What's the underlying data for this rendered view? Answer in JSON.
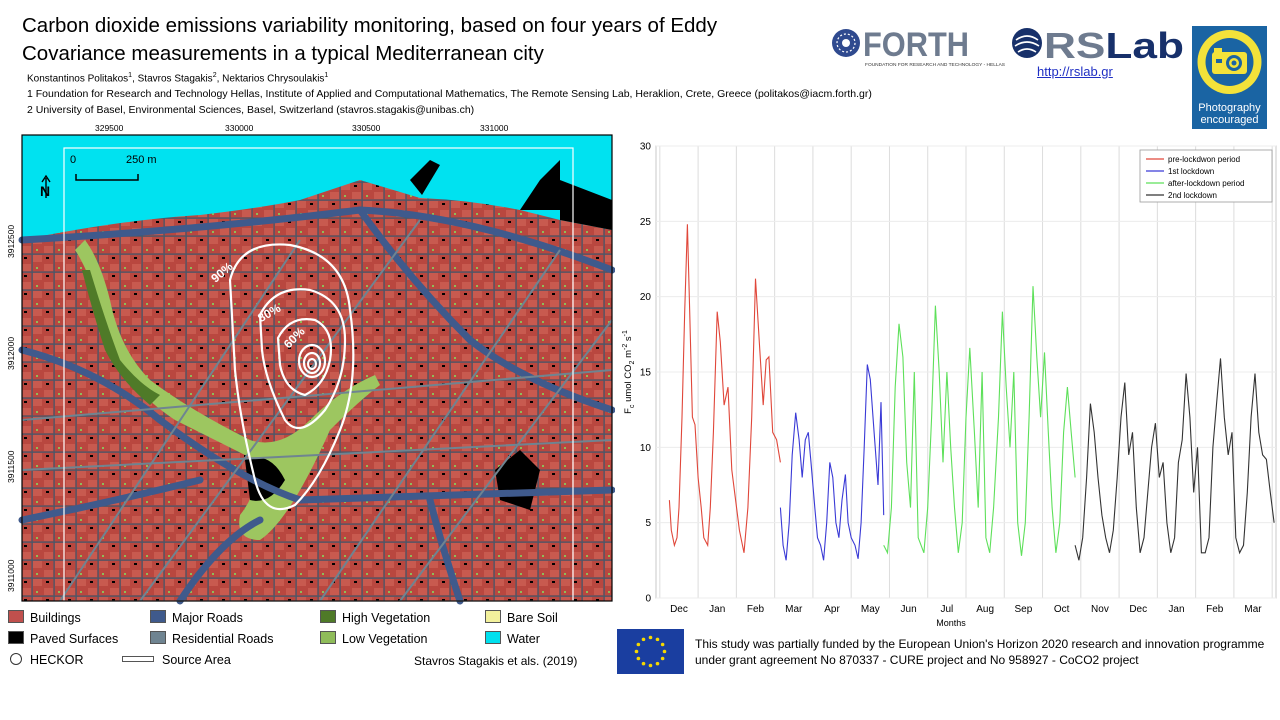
{
  "title": "Carbon dioxide emissions variability monitoring, based on four years of Eddy Covariance measurements in a typical Mediterranean city",
  "authors": [
    {
      "name": "Konstantinos Politakos",
      "aff": "1"
    },
    {
      "name": "Stavros Stagakis",
      "aff": "2"
    },
    {
      "name": "Nektarios Chrysoulakis",
      "aff": "1"
    }
  ],
  "affiliations": [
    "1 Foundation for Research and Technology Hellas, Institute of Applied and Computational Mathematics, The  Remote Sensing Lab, Heraklion, Crete, Greece  (politakos@iacm.forth.gr)",
    "2 University of Basel, Environmental Sciences, Basel, Switzerland (stavros.stagakis@unibas.ch)"
  ],
  "logos": {
    "forth_name": "FORTH",
    "forth_subtitle": "FOUNDATION FOR RESEARCH AND TECHNOLOGY - HELLAS",
    "rslab_name_a": "RS",
    "rslab_name_b": "Lab",
    "rslab_link": "http://rslab.gr",
    "badge_line1": "Photography",
    "badge_line2": "encouraged"
  },
  "map": {
    "x_ticks": [
      "329500",
      "330000",
      "330500",
      "331000"
    ],
    "y_ticks": [
      "3912500",
      "3912000",
      "3911500",
      "3911000"
    ],
    "scale_start": "0",
    "scale_end": "250 m",
    "north_symbol": "N",
    "contour_labels": [
      "90%",
      "80%",
      "60%"
    ]
  },
  "legend": [
    {
      "label": "Buildings",
      "color": "#c0504d"
    },
    {
      "label": "Major Roads",
      "color": "#3f5a8c"
    },
    {
      "label": "High Vegetation",
      "color": "#4f7a28"
    },
    {
      "label": "Bare Soil",
      "color": "#f3f19c"
    },
    {
      "label": "Paved Surfaces",
      "color": "#000000"
    },
    {
      "label": "Residential Roads",
      "color": "#6f8491"
    },
    {
      "label": "Low Vegetation",
      "color": "#8fbc5a"
    },
    {
      "label": "Water",
      "color": "#00e0ee"
    },
    {
      "label": "HECKOR",
      "color": "#ffffff"
    },
    {
      "label": "Source Area",
      "color": "#ffffff"
    }
  ],
  "citation": "Stavros Stagakis et als. (2019)",
  "funding": "This study was partially funded by the European Union's Horizon 2020 research and innovation programme under grant agreement No 870337  - CURE project and No 958927  - CoCO2 project",
  "chart_data": {
    "type": "line",
    "title": "",
    "xlabel": "Months",
    "ylabel": "F_c umol CO2 m^-2 s^-1",
    "ylabel_parts": {
      "main": "F",
      "sub1": "c",
      "mid": " umol CO",
      "sub2": "2",
      "m": " m",
      "sup1": "-2",
      "s": " s",
      "sup2": "-1"
    },
    "ylim": [
      0,
      30
    ],
    "yticks": [
      0,
      5,
      10,
      15,
      20,
      25,
      30
    ],
    "categories": [
      "Dec",
      "Jan",
      "Feb",
      "Mar",
      "Apr",
      "May",
      "Jun",
      "Jul",
      "Aug",
      "Sep",
      "Oct",
      "Nov",
      "Dec",
      "Jan",
      "Feb",
      "Mar"
    ],
    "series": [
      {
        "name": "pre-lockdwon period",
        "color": "#e0473a",
        "x": [
          -0.25,
          -0.2,
          -0.12,
          -0.05,
          0,
          0.08,
          0.15,
          0.22,
          0.28,
          0.35,
          0.42,
          0.5,
          0.58,
          0.65,
          0.75,
          0.82,
          0.9,
          1.0,
          1.08,
          1.18,
          1.28,
          1.38,
          1.48,
          1.58,
          1.7,
          1.8,
          1.9,
          2.0,
          2.1,
          2.2,
          2.28,
          2.35,
          2.45,
          2.55,
          2.65
        ],
        "values": [
          6.5,
          4.5,
          3.5,
          4,
          6,
          12,
          19,
          24.8,
          19,
          12,
          11.5,
          8,
          6,
          4,
          3.5,
          6,
          11,
          19,
          17,
          12.8,
          14,
          8.5,
          6.5,
          4.5,
          3,
          6,
          12,
          21.2,
          17,
          12.8,
          15.8,
          16,
          11,
          10.5,
          9
        ]
      },
      {
        "name": "1st lockdown",
        "color": "#3a3ad6",
        "x": [
          2.65,
          2.72,
          2.8,
          2.88,
          2.96,
          3.05,
          3.14,
          3.22,
          3.3,
          3.38,
          3.45,
          3.55,
          3.62,
          3.7,
          3.78,
          3.86,
          3.94,
          4.02,
          4.1,
          4.18,
          4.26,
          4.35,
          4.42,
          4.5,
          4.6,
          4.68,
          4.76,
          4.84,
          4.92,
          5.0,
          5.1,
          5.2,
          5.28,
          5.35
        ],
        "values": [
          6,
          3.5,
          2.5,
          5,
          9.5,
          12.3,
          10.5,
          8,
          10.5,
          11,
          9,
          6,
          4,
          3.5,
          2.5,
          5,
          9,
          8,
          5,
          4,
          6.5,
          8.2,
          5,
          4,
          3.5,
          2.6,
          5,
          10,
          15.5,
          14.5,
          11,
          7.5,
          13,
          5.5
        ]
      },
      {
        "name": "after-lockdown period",
        "color": "#5ee05a",
        "x": [
          5.35,
          5.45,
          5.55,
          5.65,
          5.75,
          5.85,
          5.95,
          6.05,
          6.15,
          6.25,
          6.4,
          6.5,
          6.6,
          6.7,
          6.8,
          6.9,
          7.0,
          7.1,
          7.2,
          7.3,
          7.4,
          7.5,
          7.6,
          7.72,
          7.82,
          7.92,
          8.02,
          8.12,
          8.22,
          8.35,
          8.45,
          8.55,
          8.65,
          8.75,
          8.85,
          8.95,
          9.05,
          9.15,
          9.25,
          9.35,
          9.45,
          9.55,
          9.65,
          9.75,
          9.85,
          9.95,
          10.05,
          10.15,
          10.25,
          10.35
        ],
        "values": [
          3.5,
          3,
          6,
          14,
          18.2,
          16,
          9,
          6,
          15,
          4,
          3,
          6,
          12,
          19.4,
          15,
          9,
          15,
          10,
          6,
          3,
          5,
          12,
          16.6,
          11,
          6,
          15,
          4,
          3,
          6,
          12,
          19.0,
          14,
          10,
          15,
          5,
          2.8,
          5,
          12,
          20.7,
          16,
          12,
          16.3,
          11,
          6,
          3,
          5,
          11,
          14,
          11,
          8
        ]
      },
      {
        "name": "2nd lockdown",
        "color": "#333333",
        "x": [
          10.35,
          10.45,
          10.55,
          10.65,
          10.75,
          10.85,
          10.95,
          11.05,
          11.15,
          11.25,
          11.35,
          11.45,
          11.55,
          11.65,
          11.75,
          11.85,
          11.95,
          12.05,
          12.15,
          12.25,
          12.35,
          12.45,
          12.55,
          12.65,
          12.75,
          12.85,
          12.95,
          13.05,
          13.15,
          13.25,
          13.35,
          13.45,
          13.55,
          13.65,
          13.75,
          13.85,
          13.95,
          14.05,
          14.15,
          14.25,
          14.35,
          14.45,
          14.55,
          14.65,
          14.75,
          14.85,
          14.95,
          15.05,
          15.15,
          15.25,
          15.35,
          15.45,
          15.55
        ],
        "values": [
          3.5,
          2.5,
          4,
          8,
          12.9,
          11,
          8,
          5.5,
          4,
          3,
          4.5,
          8,
          12,
          14.3,
          9.5,
          11,
          6,
          3,
          4,
          7,
          10,
          11.6,
          8,
          9,
          5,
          3,
          4,
          9,
          10.5,
          14.9,
          12,
          7,
          10,
          3,
          3,
          4,
          10,
          13,
          15.9,
          12,
          9.5,
          11,
          4,
          3,
          3.5,
          7,
          12,
          14.9,
          11,
          9.5,
          9.2,
          7,
          5
        ]
      }
    ],
    "legend_position": "top-right",
    "grid": true
  }
}
